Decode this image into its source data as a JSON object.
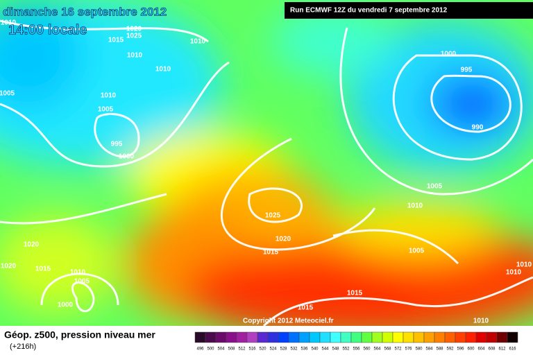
{
  "header": {
    "date": "dimanche 16 septembre 2012",
    "time": "14:00 locale",
    "run": "Run ECMWF 12Z du vendredi 7 septembre 2012"
  },
  "footer": {
    "title": "Géop. z500, pression niveau mer",
    "lead": "(+216h)",
    "copyright": "Copyright 2012 Meteociel.fr"
  },
  "isobar_labels": [
    "1010",
    "1020",
    "1025",
    "1015",
    "1010",
    "1010",
    "1010",
    "1005",
    "1010",
    "1005",
    "995",
    "1000",
    "1000",
    "995",
    "990",
    "1005",
    "1010",
    "1025",
    "1020",
    "1015",
    "1005",
    "1020",
    "1020",
    "1015",
    "1010",
    "1005",
    "1000",
    "1015",
    "1015",
    "1010",
    "1010",
    "1010"
  ],
  "legend": {
    "labels": [
      "496",
      "500",
      "504",
      "508",
      "512",
      "516",
      "520",
      "524",
      "528",
      "532",
      "536",
      "540",
      "544",
      "548",
      "552",
      "556",
      "560",
      "564",
      "568",
      "572",
      "576",
      "580",
      "584",
      "588",
      "592",
      "596",
      "600",
      "604",
      "608",
      "612",
      "616"
    ],
    "colors": [
      "#2a0a2a",
      "#4b0a4b",
      "#6a0a6a",
      "#8a108a",
      "#a020a0",
      "#b040c0",
      "#5a2ad0",
      "#3030e0",
      "#0040ff",
      "#0070ff",
      "#00a0ff",
      "#00c8ff",
      "#20e0ff",
      "#40ffff",
      "#40ffc0",
      "#40ff80",
      "#60ff40",
      "#a0ff20",
      "#d0ff00",
      "#ffff00",
      "#ffe000",
      "#ffc000",
      "#ffa000",
      "#ff8000",
      "#ff6000",
      "#ff4000",
      "#ff2000",
      "#e00000",
      "#c00000",
      "#700000",
      "#100000"
    ]
  }
}
